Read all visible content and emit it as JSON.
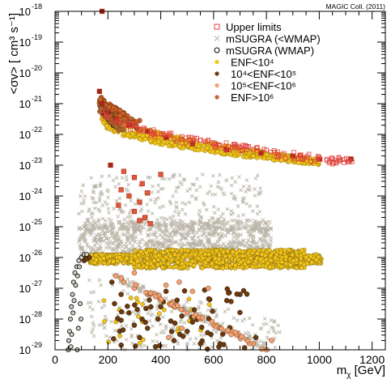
{
  "chart_data": {
    "type": "scatter",
    "title": "MAGIC Coll. (2011)",
    "xlabel": "m",
    "xlabel_sub": "χ",
    "xlabel_unit": " [GeV]",
    "ylabel": "<σv> [ cm³ s⁻¹]",
    "x_scale": "linear",
    "y_scale": "log",
    "xlim": [
      0,
      1250
    ],
    "ylim_exp": [
      -29,
      -18
    ],
    "x_ticks": [
      0,
      200,
      400,
      600,
      800,
      1000,
      1200
    ],
    "y_tick_exponents": [
      -29,
      -28,
      -27,
      -26,
      -25,
      -24,
      -23,
      -22,
      -21,
      -20,
      -19,
      -18
    ],
    "legend_position": "top-right",
    "grid": false,
    "legend": [
      {
        "label": "Upper limits",
        "marker": "square-open",
        "color": "#e0403a"
      },
      {
        "label": "mSUGRA (<WMAP)",
        "marker": "x",
        "color": "#b9b4a6"
      },
      {
        "label": "mSUGRA (WMAP)",
        "marker": "circle-open",
        "color": "#000000"
      },
      {
        "label": "ENF<10⁴",
        "marker": "dot",
        "color": "#f0c419"
      },
      {
        "label": "10⁴<ENF<10⁵",
        "marker": "dot",
        "color": "#6b3a0e"
      },
      {
        "label": "10⁵<ENF<10⁶",
        "marker": "dot",
        "color": "#f4a070"
      },
      {
        "label": "ENF>10⁶",
        "marker": "dot",
        "color": "#c8622a"
      }
    ],
    "series": [
      {
        "name": "Upper limits",
        "points": [
          [
            178,
            -18.0
          ],
          [
            168,
            -20.6
          ],
          [
            178,
            -21.0
          ],
          [
            200,
            -21.3
          ],
          [
            230,
            -21.5
          ],
          [
            280,
            -21.7
          ],
          [
            350,
            -21.9
          ],
          [
            420,
            -22.1
          ],
          [
            520,
            -22.3
          ],
          [
            650,
            -22.5
          ],
          [
            780,
            -22.6
          ],
          [
            900,
            -22.7
          ],
          [
            1000,
            -22.8
          ],
          [
            1120,
            -22.8
          ],
          [
            210,
            -23.0
          ],
          [
            260,
            -23.2
          ],
          [
            300,
            -23.4
          ],
          [
            330,
            -23.6
          ],
          [
            250,
            -23.8
          ],
          [
            280,
            -24.0
          ],
          [
            350,
            -23.9
          ],
          [
            320,
            -24.2
          ],
          [
            300,
            -24.5
          ],
          [
            340,
            -24.7
          ],
          [
            240,
            -24.3
          ],
          [
            400,
            -23.3
          ],
          [
            360,
            -24.9
          ],
          [
            320,
            -24.8
          ]
        ]
      },
      {
        "name": "mSUGRA (<WMAP)",
        "regions": [
          {
            "x": [
              60,
              820
            ],
            "y_exp": [
              -26.3,
              -23.2
            ],
            "dense_y_exp": [
              -26.1,
              -24.8
            ]
          },
          {
            "x": [
              120,
              850
            ],
            "y_exp": [
              -29.0,
              -26.5
            ]
          }
        ]
      },
      {
        "name": "mSUGRA (WMAP)",
        "points": [
          [
            50,
            -29.0
          ],
          [
            52,
            -28.7
          ],
          [
            55,
            -28.4
          ],
          [
            58,
            -28.0
          ],
          [
            62,
            -27.6
          ],
          [
            66,
            -27.2
          ],
          [
            70,
            -26.8
          ],
          [
            75,
            -26.5
          ],
          [
            82,
            -26.3
          ],
          [
            90,
            -26.1
          ],
          [
            100,
            -26.0
          ],
          [
            110,
            -25.9
          ],
          [
            120,
            -25.9
          ],
          [
            60,
            -28.9
          ],
          [
            63,
            -28.5
          ],
          [
            68,
            -27.8
          ],
          [
            72,
            -27.4
          ],
          [
            78,
            -26.9
          ],
          [
            85,
            -26.6
          ],
          [
            92,
            -26.3
          ],
          [
            95,
            -27.5
          ],
          [
            98,
            -28.0
          ],
          [
            88,
            -28.3
          ],
          [
            84,
            -29.0
          ]
        ]
      },
      {
        "name": "ENF<10⁴",
        "bands": [
          {
            "x": [
              175,
              1000
            ],
            "y_exp_top": [
              -21.0,
              -22.8
            ],
            "y_exp_bottom": [
              -21.6,
              -23.0
            ]
          },
          {
            "x": [
              130,
              1010
            ],
            "y_exp": [
              -26.4,
              -25.8
            ]
          }
        ]
      },
      {
        "name": "10⁴<ENF<10⁵",
        "points": [
          [
            180,
            -21.3
          ],
          [
            190,
            -21.4
          ],
          [
            200,
            -21.5
          ],
          [
            210,
            -21.6
          ],
          [
            220,
            -21.7
          ],
          [
            230,
            -21.75
          ],
          [
            110,
            -26.1
          ],
          [
            120,
            -26.05
          ],
          [
            130,
            -26.0
          ],
          [
            215,
            -26.8
          ],
          [
            225,
            -27.5
          ],
          [
            250,
            -27.2
          ],
          [
            280,
            -27.8
          ],
          [
            300,
            -28.2
          ],
          [
            320,
            -28.6
          ],
          [
            350,
            -28.3
          ],
          [
            380,
            -28.9
          ],
          [
            400,
            -27.6
          ],
          [
            420,
            -27.1
          ],
          [
            450,
            -28.7
          ],
          [
            480,
            -27.9
          ],
          [
            500,
            -28.4
          ],
          [
            520,
            -28.1
          ],
          [
            550,
            -28.8
          ],
          [
            590,
            -28.5
          ],
          [
            620,
            -28.9
          ],
          [
            650,
            -27.4
          ],
          [
            700,
            -27.2
          ],
          [
            760,
            -28.6
          ],
          [
            390,
            -28.0
          ]
        ]
      },
      {
        "name": "10⁵<ENF<10⁶",
        "points": [
          [
            230,
            -26.6
          ],
          [
            260,
            -26.8
          ],
          [
            300,
            -27.0
          ],
          [
            350,
            -27.2
          ],
          [
            400,
            -27.4
          ],
          [
            450,
            -27.6
          ],
          [
            500,
            -27.8
          ],
          [
            550,
            -28.0
          ],
          [
            600,
            -28.2
          ],
          [
            650,
            -28.4
          ],
          [
            700,
            -28.6
          ],
          [
            750,
            -28.8
          ],
          [
            800,
            -29.0
          ],
          [
            420,
            -26.9
          ],
          [
            470,
            -26.8
          ],
          [
            520,
            -27.1
          ],
          [
            580,
            -27.0
          ],
          [
            480,
            -28.3
          ],
          [
            430,
            -28.6
          ],
          [
            820,
            -28.7
          ],
          [
            300,
            -26.5
          ]
        ]
      },
      {
        "name": "ENF>10⁶",
        "points": [
          [
            175,
            -20.8
          ],
          [
            185,
            -20.9
          ],
          [
            200,
            -21.1
          ],
          [
            215,
            -21.2
          ],
          [
            235,
            -21.3
          ],
          [
            260,
            -21.4
          ],
          [
            290,
            -21.5
          ],
          [
            320,
            -21.55
          ],
          [
            190,
            -21.0
          ],
          [
            205,
            -21.15
          ],
          [
            110,
            -26.05
          ],
          [
            115,
            -26.0
          ],
          [
            125,
            -26.0
          ]
        ]
      }
    ]
  }
}
